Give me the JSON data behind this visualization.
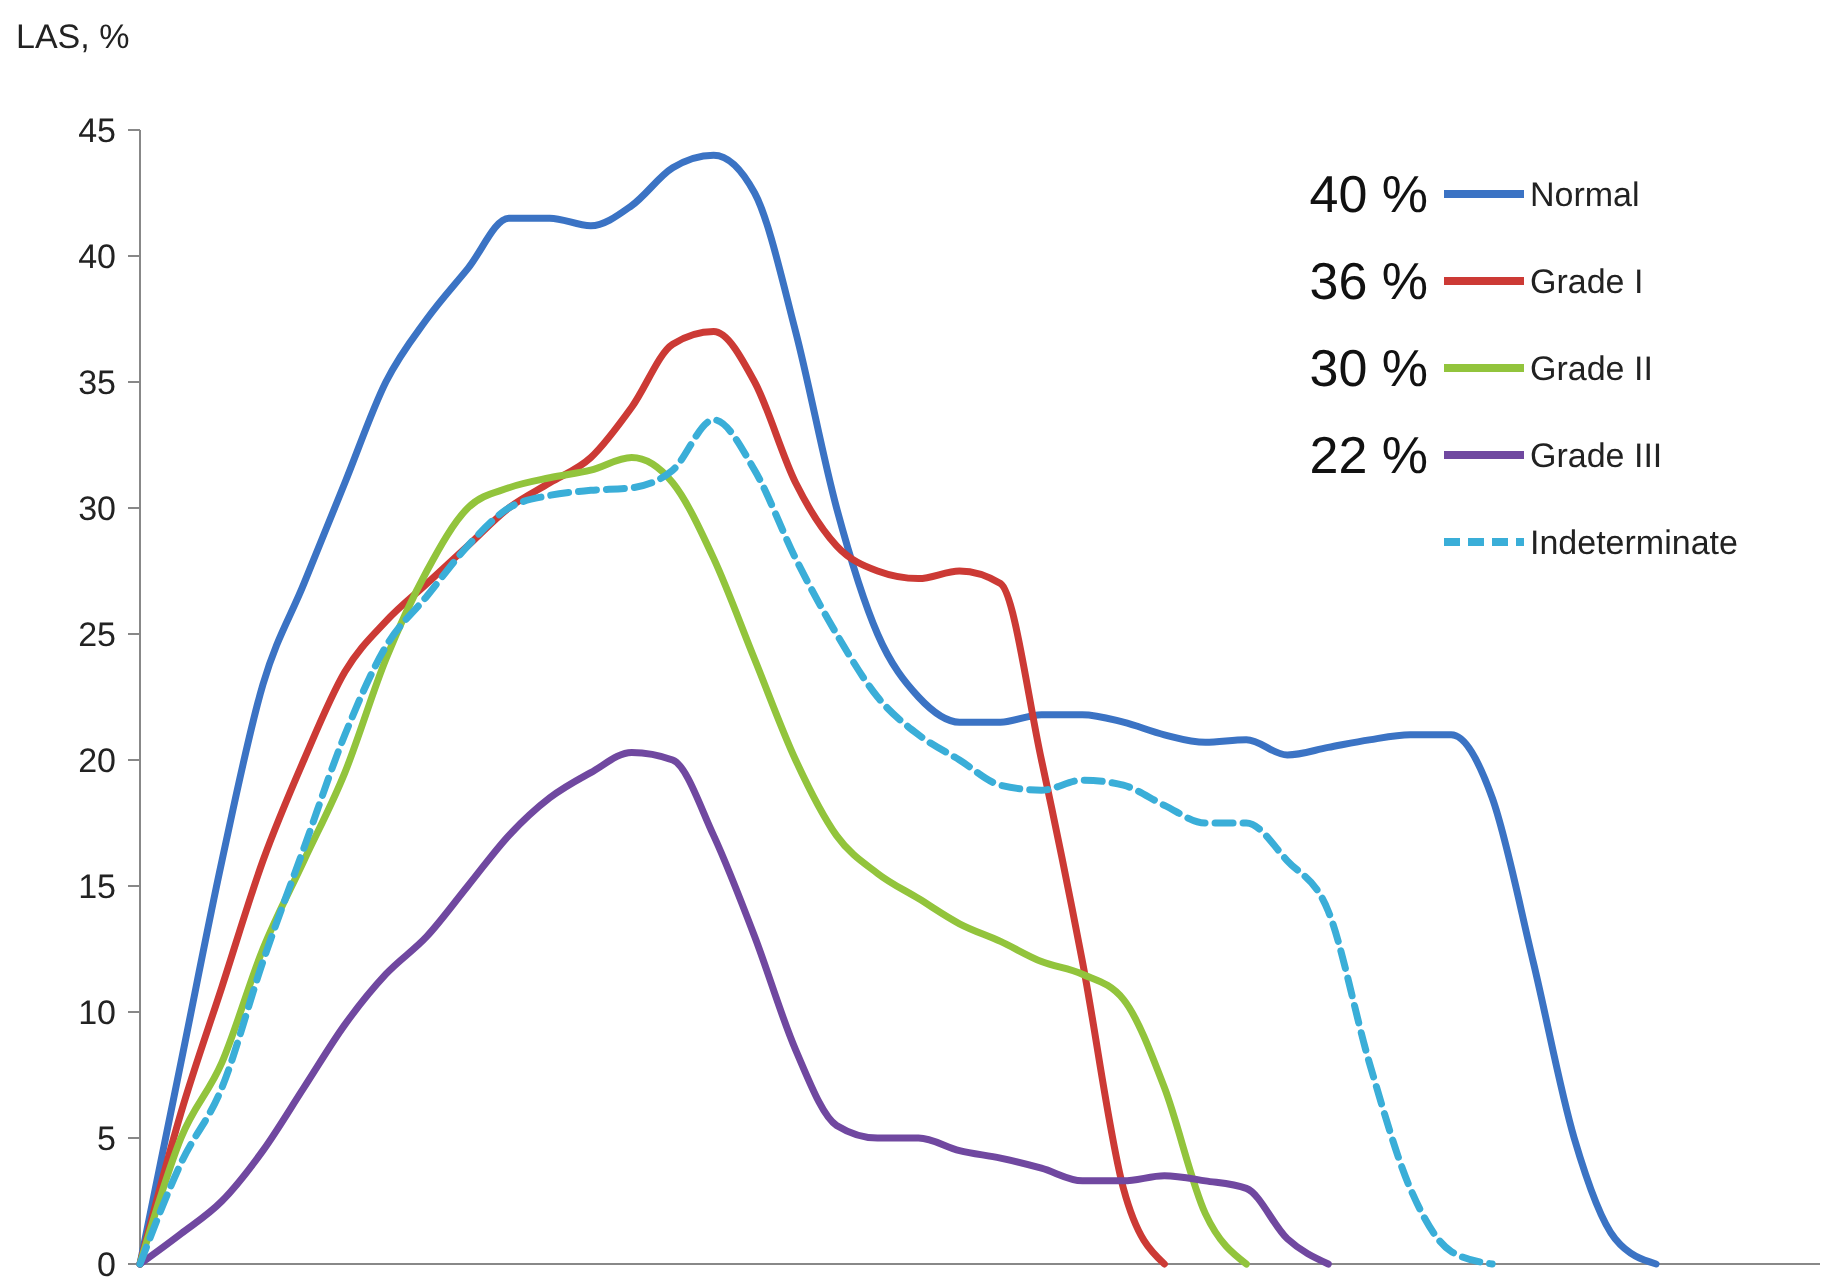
{
  "chart_data": {
    "type": "line",
    "ylabel": "LAS, %",
    "ylim": [
      0,
      45
    ],
    "yticks": [
      0,
      5,
      10,
      15,
      20,
      25,
      30,
      35,
      40,
      45
    ],
    "tick_labels": "y",
    "grid": false,
    "legend": "top right",
    "categories": [
      null,
      null,
      null,
      null,
      null,
      null,
      null,
      null,
      null,
      null,
      null,
      null,
      null,
      null,
      null,
      null,
      null,
      null,
      null,
      null,
      null,
      null,
      null,
      null,
      null,
      null,
      null,
      null,
      null,
      null,
      null,
      null,
      null,
      null,
      null,
      null,
      null,
      null,
      null,
      null,
      null,
      null
    ],
    "annotations": [
      "40 %",
      "36 %",
      "30 %",
      "22 %"
    ],
    "series": [
      {
        "name": "Normal",
        "color": "#3b73c4",
        "line_style": "solid",
        "values": [
          0,
          8,
          16,
          23,
          27,
          31,
          35,
          37.5,
          39.5,
          41.5,
          41.5,
          41.2,
          42,
          43.5,
          44,
          42.5,
          37,
          30,
          25,
          22.5,
          21.5,
          21.5,
          21.8,
          21.8,
          21.5,
          21,
          20.7,
          20.8,
          20.2,
          20.5,
          20.8,
          21,
          21,
          18.5,
          12,
          5,
          1,
          0,
          null,
          null,
          null,
          null
        ]
      },
      {
        "name": "Grade I",
        "color": "#cc3a35",
        "line_style": "solid",
        "values": [
          0,
          6,
          11,
          16,
          20,
          23.5,
          25.5,
          27,
          28.5,
          30,
          31,
          32,
          34,
          36.5,
          37,
          35,
          31,
          28.5,
          27.5,
          27.2,
          27.5,
          27,
          20,
          12,
          3,
          0,
          null,
          null,
          null,
          null,
          null,
          null,
          null,
          null,
          null,
          null,
          null,
          null,
          null,
          null,
          null,
          null
        ]
      },
      {
        "name": "Grade II",
        "color": "#92c43c",
        "line_style": "solid",
        "values": [
          0,
          5,
          8,
          12.5,
          16,
          19.5,
          24,
          27.5,
          30,
          30.8,
          31.2,
          31.5,
          32,
          31,
          28,
          24,
          20,
          17,
          15.5,
          14.5,
          13.5,
          12.8,
          12,
          11.5,
          10.5,
          7,
          2,
          0,
          null,
          null,
          null,
          null,
          null,
          null,
          null,
          null,
          null,
          null,
          null,
          null,
          null,
          null
        ]
      },
      {
        "name": "Grade III",
        "color": "#7048a0",
        "line_style": "solid",
        "values": [
          0,
          1.2,
          2.5,
          4.5,
          7,
          9.5,
          11.5,
          13,
          15,
          17,
          18.5,
          19.5,
          20.3,
          20,
          17,
          13,
          8.5,
          5.5,
          5,
          5,
          4.5,
          4.2,
          3.8,
          3.3,
          3.3,
          3.5,
          3.3,
          3,
          1,
          0,
          null,
          null,
          null,
          null,
          null,
          null,
          null,
          null,
          null,
          null,
          null,
          null
        ]
      },
      {
        "name": "Indeterminate",
        "color": "#3aaed8",
        "line_style": "dashed",
        "values": [
          0,
          4,
          7,
          12,
          16.5,
          21,
          24.5,
          26.5,
          28.5,
          30,
          30.5,
          30.7,
          30.8,
          31.5,
          33.5,
          31.5,
          28,
          25,
          22.5,
          21,
          20,
          19,
          18.8,
          19.2,
          19,
          18.2,
          17.5,
          17.5,
          16,
          14,
          8,
          3,
          0.5,
          0,
          null,
          null,
          null,
          null,
          null,
          null,
          null,
          null
        ]
      }
    ]
  }
}
